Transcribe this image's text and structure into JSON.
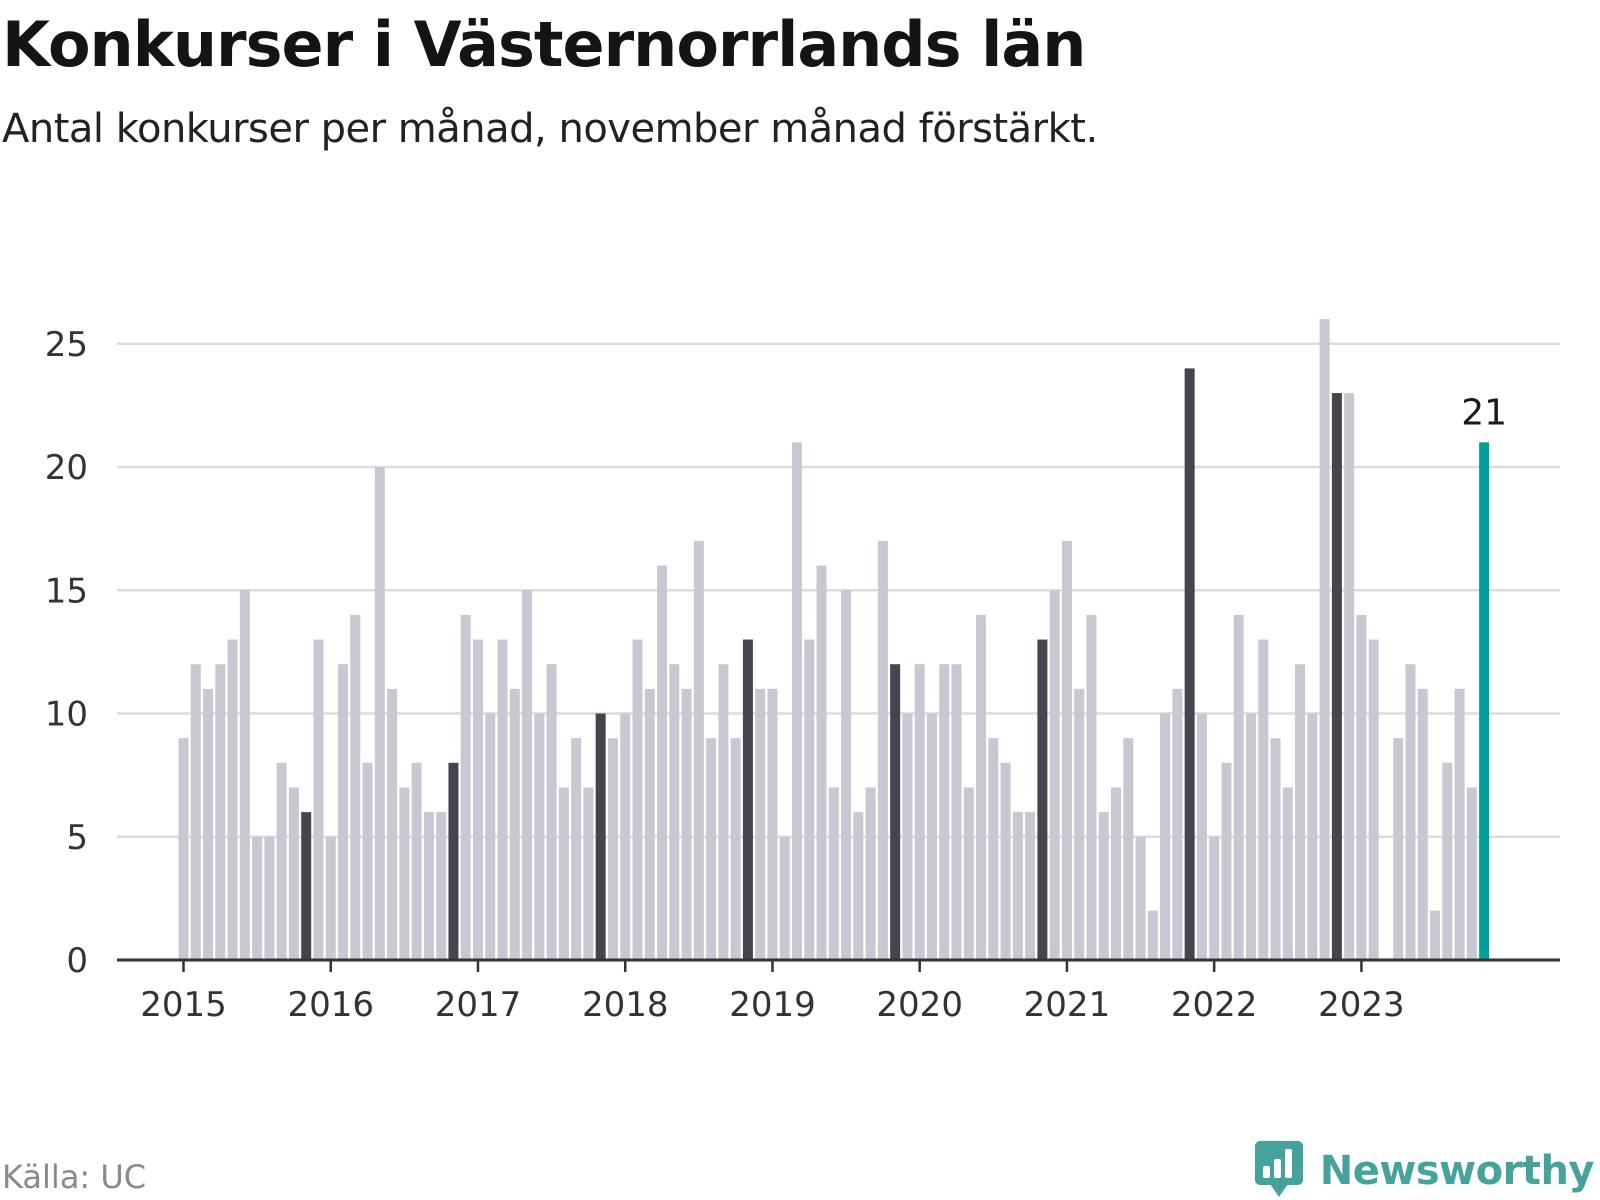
{
  "header": {
    "title": "Konkurser i Västernorrlands län",
    "subtitle": "Antal konkurser per månad, november månad förstärkt."
  },
  "footer": {
    "source": "Källa: UC",
    "brand": "Newsworthy",
    "brand_icon": "bar-chart-chat-icon"
  },
  "colors": {
    "bar_default": "#c8c8d2",
    "bar_november": "#45454f",
    "bar_latest": "#00a09a",
    "grid": "#dcdcdc",
    "axis": "#333333",
    "text": "#333333",
    "brand": "#45a39c"
  },
  "chart_data": {
    "type": "bar",
    "title": "Konkurser i Västernorrlands län",
    "subtitle": "Antal konkurser per månad, november månad förstärkt.",
    "xlabel": "",
    "ylabel": "",
    "ylim": [
      0,
      26
    ],
    "yticks": [
      0,
      5,
      10,
      15,
      20,
      25
    ],
    "xtick_labels": [
      "2015",
      "2016",
      "2017",
      "2018",
      "2019",
      "2020",
      "2021",
      "2022",
      "2023"
    ],
    "grid": true,
    "legend": "none",
    "start_month": "2015-01",
    "highlight_month": "November",
    "latest_label": "21",
    "values": [
      9,
      12,
      11,
      12,
      13,
      15,
      5,
      5,
      8,
      7,
      6,
      13,
      5,
      12,
      14,
      8,
      20,
      11,
      7,
      8,
      6,
      6,
      8,
      14,
      13,
      10,
      13,
      11,
      15,
      10,
      12,
      7,
      9,
      7,
      10,
      9,
      10,
      13,
      11,
      16,
      12,
      11,
      17,
      9,
      12,
      9,
      13,
      11,
      11,
      5,
      21,
      13,
      16,
      7,
      15,
      6,
      7,
      17,
      12,
      10,
      12,
      10,
      12,
      12,
      7,
      14,
      9,
      8,
      6,
      6,
      13,
      15,
      17,
      11,
      14,
      6,
      7,
      9,
      5,
      2,
      10,
      11,
      24,
      10,
      5,
      8,
      14,
      10,
      13,
      9,
      7,
      12,
      10,
      26,
      23,
      23,
      14,
      13,
      0,
      9,
      12,
      11,
      2,
      8,
      11,
      7,
      21
    ]
  }
}
